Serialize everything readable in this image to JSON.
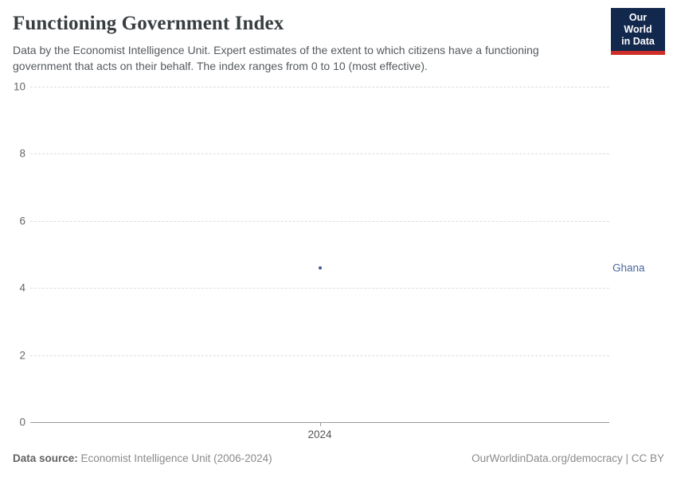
{
  "header": {
    "title": "Functioning Government Index",
    "subtitle": "Data by the Economist Intelligence Unit. Expert estimates of the extent to which citizens have a functioning government that acts on their behalf. The index ranges from 0 to 10 (most effective).",
    "logo": {
      "line1": "Our World",
      "line2": "in Data",
      "bg_color": "#12284c",
      "accent_color": "#cf2d27"
    }
  },
  "chart_data": {
    "type": "scatter",
    "title": "Functioning Government Index",
    "x": [
      2024
    ],
    "series": [
      {
        "name": "Ghana",
        "values": [
          4.6
        ],
        "color": "#4c6a9c",
        "point_color": "#3d5a8f"
      }
    ],
    "xlabel": "",
    "ylabel": "",
    "ylim": [
      0,
      10
    ],
    "yticks": [
      0,
      2,
      4,
      6,
      8,
      10
    ],
    "xtick_labels": [
      "2024"
    ],
    "grid": "horizontal-dashed",
    "gridline_color": "#dddddd",
    "axis_color": "#999999",
    "tick_label_color": "#666666",
    "legend_position": "right-entity-label"
  },
  "footer": {
    "datasource_label": "Data source:",
    "datasource_text": " Economist Intelligence Unit (2006-2024)",
    "attribution": "OurWorldinData.org/democracy | CC BY"
  }
}
